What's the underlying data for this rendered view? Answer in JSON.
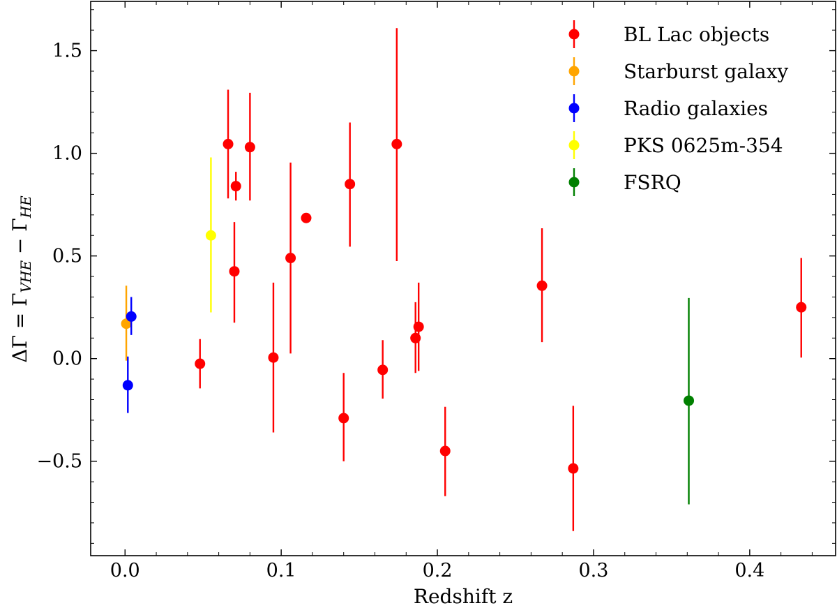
{
  "chart_data": {
    "type": "scatter",
    "title": "",
    "xlabel": "Redshift z",
    "ylabel": "ΔΓ = Γ",
    "ylabel_sub_vhe": "VHE",
    "ylabel_minus": " − Γ",
    "ylabel_sub_he": "HE",
    "xlim": [
      -0.022,
      0.455
    ],
    "ylim": [
      -0.96,
      1.74
    ],
    "xticks": [
      0.0,
      0.1,
      0.2,
      0.3,
      0.4
    ],
    "xtick_labels": [
      "0.0",
      "0.1",
      "0.2",
      "0.3",
      "0.4"
    ],
    "yticks": [
      -0.5,
      0.0,
      0.5,
      1.0,
      1.5
    ],
    "ytick_labels": [
      "−0.5",
      "0.0",
      "0.5",
      "1.0",
      "1.5"
    ],
    "grid": false,
    "legend_position": "top-right",
    "series": [
      {
        "name": "BL Lac objects",
        "color": "#ff0000",
        "points": [
          {
            "x": 0.048,
            "y": -0.025,
            "ylo": -0.145,
            "yhi": 0.095
          },
          {
            "x": 0.066,
            "y": 1.045,
            "ylo": 0.78,
            "yhi": 1.31
          },
          {
            "x": 0.07,
            "y": 0.425,
            "ylo": 0.175,
            "yhi": 0.665
          },
          {
            "x": 0.071,
            "y": 0.84,
            "ylo": 0.77,
            "yhi": 0.91
          },
          {
            "x": 0.08,
            "y": 1.03,
            "ylo": 0.77,
            "yhi": 1.295
          },
          {
            "x": 0.095,
            "y": 0.005,
            "ylo": -0.36,
            "yhi": 0.37
          },
          {
            "x": 0.106,
            "y": 0.49,
            "ylo": 0.025,
            "yhi": 0.955
          },
          {
            "x": 0.116,
            "y": 0.685,
            "ylo": 0.685,
            "yhi": 0.685
          },
          {
            "x": 0.14,
            "y": -0.29,
            "ylo": -0.5,
            "yhi": -0.07
          },
          {
            "x": 0.144,
            "y": 0.85,
            "ylo": 0.545,
            "yhi": 1.15
          },
          {
            "x": 0.165,
            "y": -0.055,
            "ylo": -0.195,
            "yhi": 0.09
          },
          {
            "x": 0.174,
            "y": 1.045,
            "ylo": 0.475,
            "yhi": 1.61
          },
          {
            "x": 0.186,
            "y": 0.1,
            "ylo": -0.07,
            "yhi": 0.275
          },
          {
            "x": 0.188,
            "y": 0.155,
            "ylo": -0.06,
            "yhi": 0.37
          },
          {
            "x": 0.205,
            "y": -0.45,
            "ylo": -0.67,
            "yhi": -0.235
          },
          {
            "x": 0.267,
            "y": 0.355,
            "ylo": 0.08,
            "yhi": 0.635
          },
          {
            "x": 0.287,
            "y": -0.535,
            "ylo": -0.84,
            "yhi": -0.23
          },
          {
            "x": 0.433,
            "y": 0.25,
            "ylo": 0.005,
            "yhi": 0.49
          }
        ]
      },
      {
        "name": "Starburst galaxy",
        "color": "#ffa500",
        "points": [
          {
            "x": 0.0008,
            "y": 0.17,
            "ylo": -0.01,
            "yhi": 0.355
          }
        ]
      },
      {
        "name": "Radio galaxies",
        "color": "#0000ff",
        "points": [
          {
            "x": 0.004,
            "y": 0.205,
            "ylo": 0.115,
            "yhi": 0.3
          },
          {
            "x": 0.0018,
            "y": -0.13,
            "ylo": -0.265,
            "yhi": 0.01
          }
        ]
      },
      {
        "name": "PKS 0625m-354",
        "color": "#ffff00",
        "points": [
          {
            "x": 0.055,
            "y": 0.6,
            "ylo": 0.225,
            "yhi": 0.98
          }
        ]
      },
      {
        "name": "FSRQ",
        "color": "#008000",
        "points": [
          {
            "x": 0.361,
            "y": -0.205,
            "ylo": -0.71,
            "yhi": 0.295
          }
        ]
      }
    ]
  }
}
